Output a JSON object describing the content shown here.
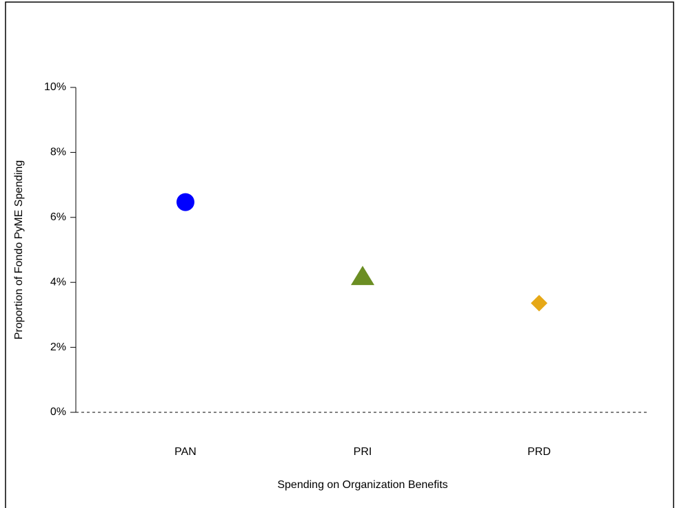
{
  "chart_data": {
    "type": "dot",
    "categories": [
      "PAN",
      "PRI",
      "PRD"
    ],
    "values": [
      6.47,
      4.15,
      3.36
    ],
    "colors": [
      "#0000ff",
      "#6b8e23",
      "#e6a817"
    ],
    "markers": [
      "circle",
      "triangle",
      "diamond"
    ],
    "xlabel": "Spending on Organization Benefits",
    "ylabel": "Proportion of Fondo PyME Spending",
    "ylim": [
      0,
      10
    ],
    "yticks": [
      {
        "value": 0,
        "label": "0%"
      },
      {
        "value": 2,
        "label": "2%"
      },
      {
        "value": 4,
        "label": "4%"
      },
      {
        "value": 6,
        "label": "6%"
      },
      {
        "value": 8,
        "label": "8%"
      },
      {
        "value": 10,
        "label": "10%"
      }
    ],
    "hline": 0
  }
}
